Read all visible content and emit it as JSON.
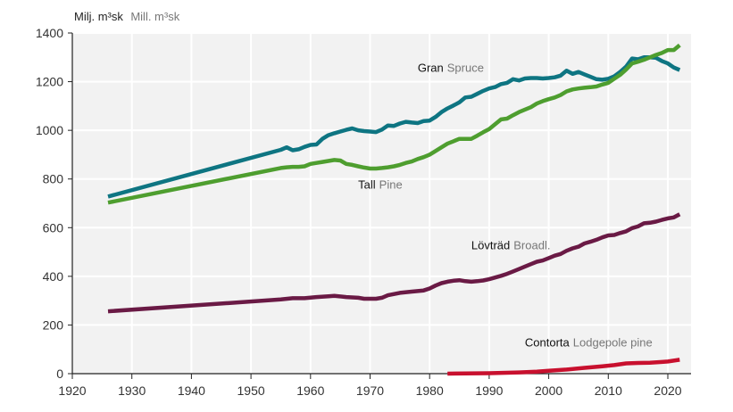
{
  "chart_data": {
    "type": "line",
    "title": "",
    "unit_label": {
      "main": "Milj. m³sk",
      "sub": "Mill. m³sk"
    },
    "xlabel": "",
    "ylabel": "Milj. m³sk / Mill. m³sk",
    "xlim": [
      1920,
      2024
    ],
    "ylim": [
      0,
      1400
    ],
    "x_ticks": [
      1920,
      1930,
      1940,
      1950,
      1960,
      1970,
      1980,
      1990,
      2000,
      2010,
      2020
    ],
    "y_ticks": [
      0,
      200,
      400,
      600,
      800,
      1000,
      1200,
      1400
    ],
    "grid": true,
    "legend": "inline labels",
    "series": [
      {
        "name": "Gran Spruce",
        "label_main": "Gran",
        "label_sub": "Spruce",
        "color": "#0e7582",
        "points": [
          [
            1926,
            728
          ],
          [
            1955,
            920
          ],
          [
            1956,
            930
          ],
          [
            1957,
            918
          ],
          [
            1958,
            922
          ],
          [
            1959,
            932
          ],
          [
            1960,
            940
          ],
          [
            1961,
            942
          ],
          [
            1962,
            965
          ],
          [
            1963,
            980
          ],
          [
            1964,
            988
          ],
          [
            1965,
            995
          ],
          [
            1966,
            1002
          ],
          [
            1967,
            1008
          ],
          [
            1968,
            1000
          ],
          [
            1969,
            997
          ],
          [
            1970,
            995
          ],
          [
            1971,
            993
          ],
          [
            1972,
            1003
          ],
          [
            1973,
            1020
          ],
          [
            1974,
            1018
          ],
          [
            1975,
            1028
          ],
          [
            1976,
            1035
          ],
          [
            1977,
            1032
          ],
          [
            1978,
            1030
          ],
          [
            1979,
            1038
          ],
          [
            1980,
            1040
          ],
          [
            1981,
            1055
          ],
          [
            1982,
            1075
          ],
          [
            1983,
            1090
          ],
          [
            1984,
            1102
          ],
          [
            1985,
            1115
          ],
          [
            1986,
            1135
          ],
          [
            1987,
            1138
          ],
          [
            1988,
            1150
          ],
          [
            1989,
            1162
          ],
          [
            1990,
            1172
          ],
          [
            1991,
            1178
          ],
          [
            1992,
            1190
          ],
          [
            1993,
            1195
          ],
          [
            1994,
            1210
          ],
          [
            1995,
            1205
          ],
          [
            1996,
            1213
          ],
          [
            1997,
            1215
          ],
          [
            1998,
            1215
          ],
          [
            1999,
            1213
          ],
          [
            2000,
            1215
          ],
          [
            2001,
            1218
          ],
          [
            2002,
            1225
          ],
          [
            2003,
            1245
          ],
          [
            2004,
            1232
          ],
          [
            2005,
            1240
          ],
          [
            2006,
            1230
          ],
          [
            2007,
            1220
          ],
          [
            2008,
            1210
          ],
          [
            2009,
            1208
          ],
          [
            2010,
            1212
          ],
          [
            2011,
            1222
          ],
          [
            2012,
            1240
          ],
          [
            2013,
            1262
          ],
          [
            2014,
            1295
          ],
          [
            2015,
            1292
          ],
          [
            2016,
            1300
          ],
          [
            2017,
            1300
          ],
          [
            2018,
            1298
          ],
          [
            2019,
            1285
          ],
          [
            2020,
            1275
          ],
          [
            2021,
            1258
          ],
          [
            2022,
            1248
          ]
        ]
      },
      {
        "name": "Tall Pine",
        "label_main": "Tall",
        "label_sub": "Pine",
        "color": "#4e9e2f",
        "points": [
          [
            1926,
            703
          ],
          [
            1955,
            845
          ],
          [
            1956,
            848
          ],
          [
            1957,
            850
          ],
          [
            1958,
            850
          ],
          [
            1959,
            852
          ],
          [
            1960,
            862
          ],
          [
            1961,
            866
          ],
          [
            1962,
            870
          ],
          [
            1963,
            874
          ],
          [
            1964,
            878
          ],
          [
            1965,
            876
          ],
          [
            1966,
            862
          ],
          [
            1967,
            858
          ],
          [
            1968,
            852
          ],
          [
            1969,
            847
          ],
          [
            1970,
            843
          ],
          [
            1971,
            843
          ],
          [
            1972,
            845
          ],
          [
            1973,
            848
          ],
          [
            1974,
            852
          ],
          [
            1975,
            858
          ],
          [
            1976,
            866
          ],
          [
            1977,
            872
          ],
          [
            1978,
            882
          ],
          [
            1979,
            890
          ],
          [
            1980,
            900
          ],
          [
            1981,
            915
          ],
          [
            1982,
            930
          ],
          [
            1983,
            945
          ],
          [
            1984,
            955
          ],
          [
            1985,
            965
          ],
          [
            1986,
            965
          ],
          [
            1987,
            965
          ],
          [
            1988,
            978
          ],
          [
            1989,
            992
          ],
          [
            1990,
            1005
          ],
          [
            1991,
            1025
          ],
          [
            1992,
            1045
          ],
          [
            1993,
            1048
          ],
          [
            1994,
            1062
          ],
          [
            1995,
            1075
          ],
          [
            1996,
            1085
          ],
          [
            1997,
            1095
          ],
          [
            1998,
            1110
          ],
          [
            1999,
            1120
          ],
          [
            2000,
            1128
          ],
          [
            2001,
            1135
          ],
          [
            2002,
            1145
          ],
          [
            2003,
            1160
          ],
          [
            2004,
            1168
          ],
          [
            2005,
            1172
          ],
          [
            2006,
            1175
          ],
          [
            2007,
            1177
          ],
          [
            2008,
            1180
          ],
          [
            2009,
            1188
          ],
          [
            2010,
            1195
          ],
          [
            2011,
            1212
          ],
          [
            2012,
            1228
          ],
          [
            2013,
            1250
          ],
          [
            2014,
            1275
          ],
          [
            2015,
            1282
          ],
          [
            2016,
            1290
          ],
          [
            2017,
            1300
          ],
          [
            2018,
            1310
          ],
          [
            2019,
            1318
          ],
          [
            2020,
            1330
          ],
          [
            2021,
            1330
          ],
          [
            2022,
            1350
          ]
        ]
      },
      {
        "name": "Lövträd Broadl.",
        "label_main": "Lövträd",
        "label_sub": "Broadl.",
        "color": "#6a1a45",
        "points": [
          [
            1926,
            256
          ],
          [
            1955,
            305
          ],
          [
            1957,
            310
          ],
          [
            1959,
            310
          ],
          [
            1961,
            315
          ],
          [
            1963,
            318
          ],
          [
            1964,
            320
          ],
          [
            1966,
            315
          ],
          [
            1968,
            312
          ],
          [
            1969,
            308
          ],
          [
            1971,
            308
          ],
          [
            1972,
            312
          ],
          [
            1973,
            322
          ],
          [
            1975,
            332
          ],
          [
            1977,
            337
          ],
          [
            1979,
            342
          ],
          [
            1980,
            350
          ],
          [
            1981,
            362
          ],
          [
            1982,
            372
          ],
          [
            1983,
            378
          ],
          [
            1984,
            382
          ],
          [
            1985,
            384
          ],
          [
            1986,
            380
          ],
          [
            1987,
            378
          ],
          [
            1988,
            380
          ],
          [
            1989,
            383
          ],
          [
            1990,
            388
          ],
          [
            1991,
            395
          ],
          [
            1992,
            402
          ],
          [
            1993,
            410
          ],
          [
            1994,
            420
          ],
          [
            1995,
            430
          ],
          [
            1996,
            440
          ],
          [
            1997,
            450
          ],
          [
            1998,
            460
          ],
          [
            1999,
            465
          ],
          [
            2000,
            475
          ],
          [
            2001,
            485
          ],
          [
            2002,
            492
          ],
          [
            2003,
            505
          ],
          [
            2004,
            515
          ],
          [
            2005,
            522
          ],
          [
            2006,
            535
          ],
          [
            2007,
            542
          ],
          [
            2008,
            550
          ],
          [
            2009,
            560
          ],
          [
            2010,
            568
          ],
          [
            2011,
            570
          ],
          [
            2012,
            578
          ],
          [
            2013,
            585
          ],
          [
            2014,
            598
          ],
          [
            2015,
            605
          ],
          [
            2016,
            618
          ],
          [
            2017,
            620
          ],
          [
            2018,
            625
          ],
          [
            2019,
            632
          ],
          [
            2020,
            638
          ],
          [
            2021,
            642
          ],
          [
            2022,
            655
          ]
        ]
      },
      {
        "name": "Contorta Lodgepole pine",
        "label_main": "Contorta",
        "label_sub": "Lodgepole pine",
        "color": "#c8102e",
        "points": [
          [
            1983,
            0
          ],
          [
            1990,
            2
          ],
          [
            1995,
            5
          ],
          [
            1998,
            8
          ],
          [
            2000,
            12
          ],
          [
            2003,
            17
          ],
          [
            2006,
            24
          ],
          [
            2009,
            30
          ],
          [
            2011,
            35
          ],
          [
            2013,
            42
          ],
          [
            2015,
            44
          ],
          [
            2017,
            45
          ],
          [
            2019,
            48
          ],
          [
            2020,
            50
          ],
          [
            2022,
            57
          ]
        ]
      }
    ]
  }
}
